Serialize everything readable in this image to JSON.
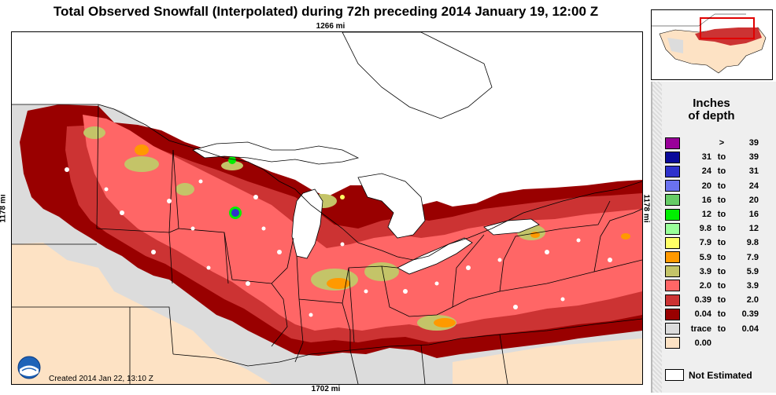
{
  "title": "Total Observed Snowfall (Interpolated) during 72h preceding 2014 January 19, 12:00 Z",
  "dimensions": {
    "top": "1266 mi",
    "bottom": "1702 mi",
    "left": "1178 mi",
    "right": "1178 mi"
  },
  "footer": {
    "created": "Created 2014 Jan 22, 13:10 Z",
    "logo_text": "NOAA"
  },
  "legend": {
    "title_line1": "Inches",
    "title_line2": "of depth",
    "rows": [
      {
        "from": "",
        "to": ">",
        "upper": "39",
        "color": "#990099"
      },
      {
        "from": "31",
        "to": "to",
        "upper": "39",
        "color": "#0a0a9a"
      },
      {
        "from": "24",
        "to": "to",
        "upper": "31",
        "color": "#2f32cc"
      },
      {
        "from": "20",
        "to": "to",
        "upper": "24",
        "color": "#6a72f0"
      },
      {
        "from": "16",
        "to": "to",
        "upper": "20",
        "color": "#66cc66"
      },
      {
        "from": "12",
        "to": "to",
        "upper": "16",
        "color": "#00ee00"
      },
      {
        "from": "9.8",
        "to": "to",
        "upper": "12",
        "color": "#99ff99"
      },
      {
        "from": "7.9",
        "to": "to",
        "upper": "9.8",
        "color": "#ffff66"
      },
      {
        "from": "5.9",
        "to": "to",
        "upper": "7.9",
        "color": "#ff9900"
      },
      {
        "from": "3.9",
        "to": "to",
        "upper": "5.9",
        "color": "#c4c468"
      },
      {
        "from": "2.0",
        "to": "to",
        "upper": "3.9",
        "color": "#ff6666"
      },
      {
        "from": "0.39",
        "to": "to",
        "upper": "2.0",
        "color": "#cc3333"
      },
      {
        "from": "0.04",
        "to": "to",
        "upper": "0.39",
        "color": "#990000"
      },
      {
        "from": "trace",
        "to": "to",
        "upper": "0.04",
        "color": "#dcdcdc"
      },
      {
        "from": "0.00",
        "to": "",
        "upper": "",
        "color": "#fde2c4"
      }
    ],
    "not_estimated": "Not Estimated"
  },
  "colors": {
    "no_snow": "#fde2c4",
    "trace": "#dcdcdc",
    "water": "#ffffff",
    "canada": "#ffffff",
    "heavy": "#990000",
    "medium": "#cc3333",
    "light": "#ff6666"
  }
}
